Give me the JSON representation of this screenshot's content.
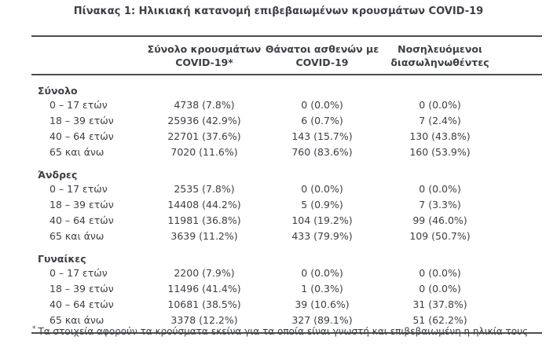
{
  "title": "Πίνακας 1: Ηλικιακή κατανομή επιβεβαιωμένων κρουσμάτων COVID-19",
  "colors": {
    "text": "#3c4046",
    "rule": "#4b4d50",
    "background": "#ffffff"
  },
  "table": {
    "header": {
      "columns": [
        {
          "line1": "Σύνολο κρουσμάτων",
          "line2": "COVID-19*"
        },
        {
          "line1": "Θάνατοι ασθενών με",
          "line2": "COVID-19"
        },
        {
          "line1": "Νοσηλευόμενοι",
          "line2": "διασωληνωθέντες"
        }
      ]
    },
    "sections": [
      {
        "label": "Σύνολο",
        "rows": [
          {
            "label": "0 – 17 ετών",
            "cases": "4738 (7.8%)",
            "deaths": "0 (0.0%)",
            "intubated": "0 (0.0%)"
          },
          {
            "label": "18 – 39 ετών",
            "cases": "25936 (42.9%)",
            "deaths": "6 (0.7%)",
            "intubated": "7 (2.4%)"
          },
          {
            "label": "40 – 64 ετών",
            "cases": "22701 (37.6%)",
            "deaths": "143 (15.7%)",
            "intubated": "130 (43.8%)"
          },
          {
            "label": "65 και άνω",
            "cases": "7020 (11.6%)",
            "deaths": "760 (83.6%)",
            "intubated": "160 (53.9%)"
          }
        ]
      },
      {
        "label": "Άνδρες",
        "rows": [
          {
            "label": "0 – 17 ετών",
            "cases": "2535 (7.8%)",
            "deaths": "0 (0.0%)",
            "intubated": "0 (0.0%)"
          },
          {
            "label": "18 – 39 ετών",
            "cases": "14408 (44.2%)",
            "deaths": "5 (0.9%)",
            "intubated": "7 (3.3%)"
          },
          {
            "label": "40 – 64 ετών",
            "cases": "11981 (36.8%)",
            "deaths": "104 (19.2%)",
            "intubated": "99 (46.0%)"
          },
          {
            "label": "65 και άνω",
            "cases": "3639 (11.2%)",
            "deaths": "433 (79.9%)",
            "intubated": "109 (50.7%)"
          }
        ]
      },
      {
        "label": "Γυναίκες",
        "rows": [
          {
            "label": "0 – 17 ετών",
            "cases": "2200 (7.9%)",
            "deaths": "0 (0.0%)",
            "intubated": "0 (0.0%)"
          },
          {
            "label": "18 – 39 ετών",
            "cases": "11496 (41.4%)",
            "deaths": "1 (0.3%)",
            "intubated": "0 (0.0%)"
          },
          {
            "label": "40 – 64 ετών",
            "cases": "10681 (38.5%)",
            "deaths": "39 (10.6%)",
            "intubated": "31 (37.8%)"
          },
          {
            "label": "65 και άνω",
            "cases": "3378 (12.2%)",
            "deaths": "327 (89.1%)",
            "intubated": "51 (62.2%)"
          }
        ]
      }
    ]
  },
  "footnote": {
    "marker": "*",
    "text": "Τα στοιχεία αφορούν τα κρούσματα εκείνα για τα οποία είναι γνωστή και επιβεβαιωμένη η ηλικία τους"
  }
}
